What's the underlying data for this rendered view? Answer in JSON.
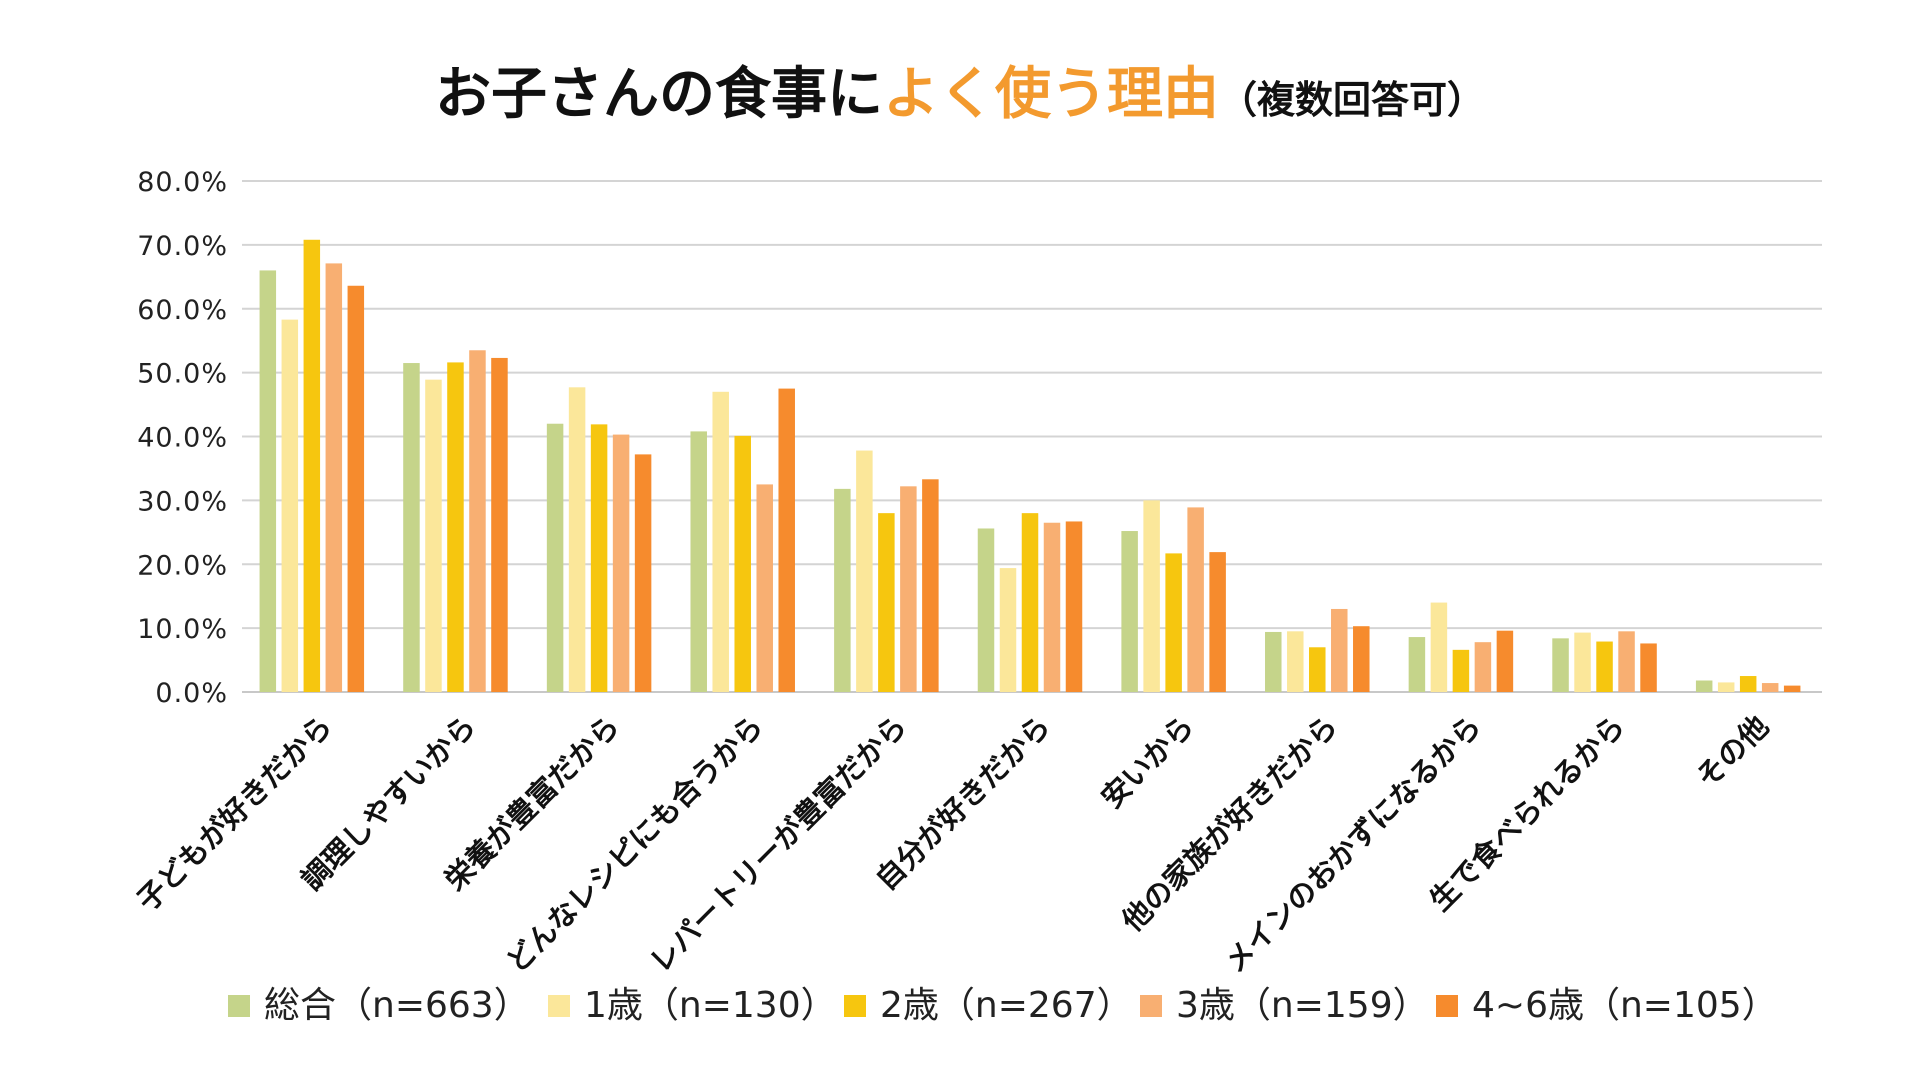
{
  "chart_data": {
    "type": "bar",
    "title": {
      "part1": "お子さんの食事に",
      "part2": "よく使う理由",
      "part3": "（複数回答可）"
    },
    "colors": {
      "title_dark": "#111111",
      "title_accent": "#F39A2E"
    },
    "ylim": [
      0,
      80
    ],
    "yticks": [
      0,
      10,
      20,
      30,
      40,
      50,
      60,
      70,
      80
    ],
    "ytick_labels": [
      "0.0%",
      "10.0%",
      "20.0%",
      "30.0%",
      "40.0%",
      "50.0%",
      "60.0%",
      "70.0%",
      "80.0%"
    ],
    "categories": [
      "子どもが好きだから",
      "調理しやすいから",
      "栄養が豊富だから",
      "どんなレシピにも合うから",
      "レパートリーが豊富だから",
      "自分が好きだから",
      "安いから",
      "他の家族が好きだから",
      "メインのおかずになるから",
      "生で食べられるから",
      "その他"
    ],
    "series": [
      {
        "name": "総合（n=663）",
        "color": "#C5D48A",
        "values": [
          66.0,
          51.5,
          42.0,
          40.8,
          31.8,
          25.6,
          25.2,
          9.4,
          8.6,
          8.4,
          1.8
        ]
      },
      {
        "name": "1歳（n=130）",
        "color": "#FBE79A",
        "values": [
          58.3,
          48.9,
          47.7,
          47.0,
          37.8,
          19.4,
          30.0,
          9.5,
          14.0,
          9.3,
          1.5
        ]
      },
      {
        "name": "2歳（n=267）",
        "color": "#F6C60F",
        "values": [
          70.8,
          51.6,
          41.9,
          40.1,
          28.0,
          28.0,
          21.7,
          7.0,
          6.6,
          7.9,
          2.5
        ]
      },
      {
        "name": "3歳（n=159）",
        "color": "#F8AF72",
        "values": [
          67.1,
          53.5,
          40.3,
          32.5,
          32.2,
          26.5,
          28.9,
          13.0,
          7.8,
          9.5,
          1.4
        ]
      },
      {
        "name": "4~6歳（n=105）",
        "color": "#F68B2D",
        "values": [
          63.6,
          52.3,
          37.2,
          47.5,
          33.3,
          26.7,
          21.9,
          10.3,
          9.6,
          7.6,
          1.0
        ]
      }
    ],
    "legend_position": "bottom",
    "grid": true
  }
}
